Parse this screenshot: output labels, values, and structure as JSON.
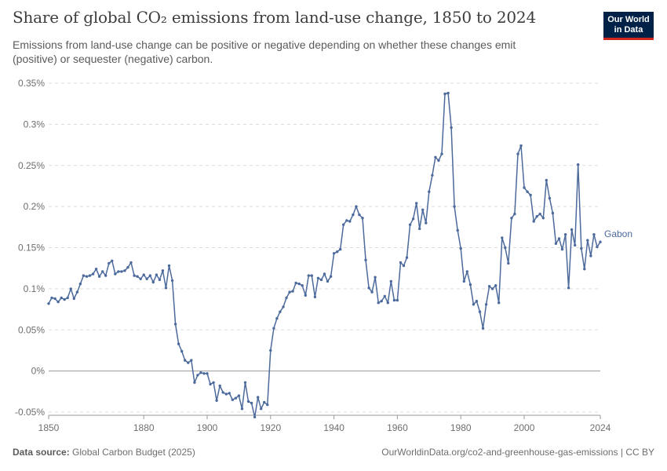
{
  "header": {
    "title": "Share of global CO₂ emissions from land-use change, 1850 to 2024",
    "subtitle": "Emissions from land-use change can be positive or negative depending on whether these changes emit (positive) or sequester (negative) carbon."
  },
  "logo": {
    "line1": "Our World",
    "line2": "in Data",
    "bg_color": "#002147",
    "accent_color": "#ce261e"
  },
  "footer": {
    "source_label": "Data source:",
    "source_value": "Global Carbon Budget (2025)",
    "url_license": "OurWorldinData.org/co2-and-greenhouse-gas-emissions | CC BY"
  },
  "chart_data": {
    "type": "line",
    "title": "Share of global CO₂ emissions from land-use change, 1850 to 2024",
    "xlabel": "",
    "ylabel": "",
    "xlim": [
      1850,
      2024
    ],
    "ylim": [
      -0.05,
      0.35
    ],
    "x_ticks": [
      1850,
      1880,
      1900,
      1920,
      1940,
      1960,
      1980,
      2000,
      2024
    ],
    "y_ticks": [
      -0.05,
      0,
      0.05,
      0.1,
      0.15,
      0.2,
      0.25,
      0.3,
      0.35
    ],
    "y_tick_labels": [
      "-0.05%",
      "0%",
      "0.05%",
      "0.1%",
      "0.15%",
      "0.2%",
      "0.25%",
      "0.3%",
      "0.35%"
    ],
    "grid": "horizontal dashed",
    "legend": "inline label at line end",
    "series": [
      {
        "name": "Gabon",
        "color": "#4c6a9c",
        "x_start": 1850,
        "x_step": 1,
        "values": [
          0.082,
          0.089,
          0.088,
          0.084,
          0.089,
          0.087,
          0.089,
          0.1,
          0.088,
          0.096,
          0.106,
          0.116,
          0.115,
          0.116,
          0.118,
          0.124,
          0.115,
          0.121,
          0.116,
          0.131,
          0.134,
          0.118,
          0.121,
          0.121,
          0.122,
          0.126,
          0.132,
          0.116,
          0.115,
          0.112,
          0.117,
          0.112,
          0.116,
          0.108,
          0.117,
          0.111,
          0.122,
          0.101,
          0.128,
          0.11,
          0.057,
          0.033,
          0.024,
          0.013,
          0.01,
          0.013,
          -0.014,
          -0.005,
          -0.002,
          -0.003,
          -0.003,
          -0.016,
          -0.014,
          -0.036,
          -0.018,
          -0.026,
          -0.028,
          -0.027,
          -0.035,
          -0.033,
          -0.03,
          -0.046,
          -0.014,
          -0.037,
          -0.039,
          -0.056,
          -0.032,
          -0.046,
          -0.038,
          -0.041,
          0.025,
          0.052,
          0.064,
          0.072,
          0.078,
          0.089,
          0.096,
          0.097,
          0.107,
          0.106,
          0.104,
          0.092,
          0.116,
          0.116,
          0.09,
          0.113,
          0.111,
          0.118,
          0.109,
          0.115,
          0.143,
          0.145,
          0.148,
          0.178,
          0.183,
          0.182,
          0.19,
          0.2,
          0.19,
          0.186,
          0.135,
          0.101,
          0.096,
          0.114,
          0.083,
          0.085,
          0.091,
          0.083,
          0.109,
          0.086,
          0.086,
          0.132,
          0.128,
          0.138,
          0.178,
          0.185,
          0.204,
          0.173,
          0.196,
          0.18,
          0.218,
          0.238,
          0.26,
          0.256,
          0.264,
          0.337,
          0.338,
          0.296,
          0.2,
          0.171,
          0.149,
          0.109,
          0.121,
          0.105,
          0.081,
          0.085,
          0.072,
          0.052,
          0.081,
          0.103,
          0.1,
          0.104,
          0.083,
          0.162,
          0.15,
          0.131,
          0.186,
          0.191,
          0.264,
          0.274,
          0.223,
          0.218,
          0.214,
          0.182,
          0.188,
          0.191,
          0.186,
          0.232,
          0.21,
          0.192,
          0.155,
          0.161,
          0.148,
          0.166,
          0.101,
          0.172,
          0.153,
          0.251,
          0.149,
          0.124,
          0.159,
          0.14,
          0.166,
          0.151,
          0.157
        ]
      }
    ]
  }
}
